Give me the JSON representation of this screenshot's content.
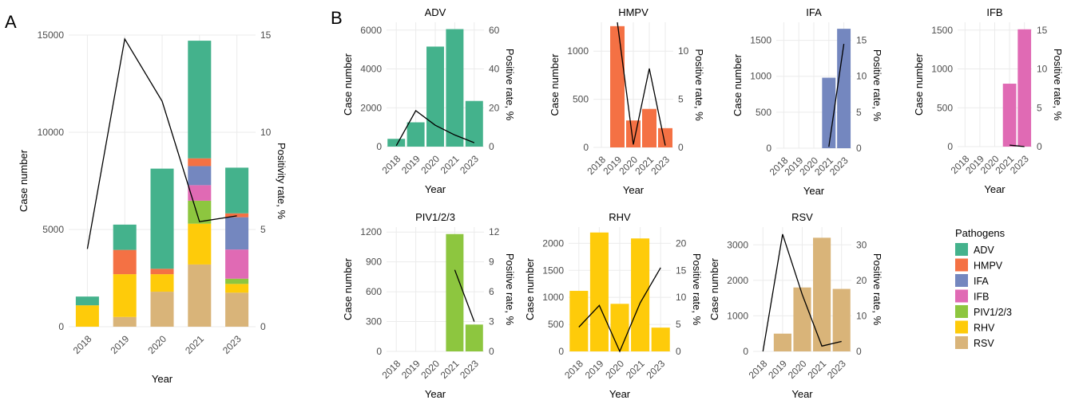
{
  "figure": {
    "panel_labels": [
      "A",
      "B"
    ],
    "legend_title": "Pathogens",
    "legend": [
      {
        "name": "ADV",
        "color": "#44B28C"
      },
      {
        "name": "HMPV",
        "color": "#F47144"
      },
      {
        "name": "IFA",
        "color": "#7487BF"
      },
      {
        "name": "IFB",
        "color": "#E06AB4"
      },
      {
        "name": "PIV1/2/3",
        "color": "#8DC63F"
      },
      {
        "name": "RHV",
        "color": "#FECB0A"
      },
      {
        "name": "RSV",
        "color": "#D9B479"
      }
    ]
  },
  "chart_data": [
    {
      "id": "A",
      "type": "bar",
      "stacked": true,
      "title": "",
      "xlabel": "Year",
      "ylabel": "Case number",
      "y2label": "Positivity rate, %",
      "categories": [
        "2018",
        "2019",
        "2020",
        "2021",
        "2023"
      ],
      "ylim": [
        0,
        15000
      ],
      "y2lim": [
        0,
        15
      ],
      "yticks": [
        0,
        5000,
        10000,
        15000
      ],
      "y2ticks": [
        0,
        5,
        10,
        15
      ],
      "series": [
        {
          "name": "RSV",
          "color": "#D9B479",
          "values": [
            0,
            500,
            1800,
            3200,
            1750
          ]
        },
        {
          "name": "RHV",
          "color": "#FECB0A",
          "values": [
            1100,
            2200,
            900,
            2100,
            450
          ]
        },
        {
          "name": "PIV1/2/3",
          "color": "#8DC63F",
          "values": [
            0,
            0,
            0,
            1180,
            270
          ]
        },
        {
          "name": "IFB",
          "color": "#E06AB4",
          "values": [
            0,
            0,
            0,
            800,
            1500
          ]
        },
        {
          "name": "IFA",
          "color": "#7487BF",
          "values": [
            0,
            0,
            0,
            980,
            1660
          ]
        },
        {
          "name": "HMPV",
          "color": "#F47144",
          "values": [
            0,
            1250,
            280,
            400,
            200
          ]
        },
        {
          "name": "ADV",
          "color": "#44B28C",
          "values": [
            450,
            1300,
            5150,
            6050,
            2350
          ]
        }
      ],
      "line": [
        4.0,
        14.8,
        11.6,
        5.4,
        5.7
      ]
    },
    {
      "id": "ADV",
      "type": "bar",
      "title": "ADV",
      "color": "#44B28C",
      "xlabel": "Year",
      "ylabel": "Case number",
      "y2label": "Positive rate, %",
      "categories": [
        "2018",
        "2019",
        "2020",
        "2021",
        "2023"
      ],
      "values": [
        400,
        1250,
        5150,
        6050,
        2350
      ],
      "line": [
        0.5,
        18.5,
        11.0,
        6.0,
        2.0
      ],
      "ylim": [
        0,
        6400
      ],
      "y2lim": [
        0,
        64
      ],
      "yticks": [
        0,
        2000,
        4000,
        6000
      ],
      "y2ticks": [
        0,
        20,
        40,
        60
      ]
    },
    {
      "id": "HMPV",
      "type": "bar",
      "title": "HMPV",
      "color": "#F47144",
      "xlabel": "Year",
      "ylabel": "Case number",
      "y2label": "Positive rate, %",
      "categories": [
        "2018",
        "2019",
        "2020",
        "2021",
        "2023"
      ],
      "values": [
        0,
        1260,
        280,
        400,
        200
      ],
      "line": [
        null,
        13.0,
        0.3,
        8.2,
        0.2
      ],
      "ylim": [
        0,
        1300
      ],
      "y2lim": [
        0,
        13
      ],
      "yticks": [
        0,
        500,
        1000
      ],
      "y2ticks": [
        0,
        5,
        10
      ]
    },
    {
      "id": "IFA",
      "type": "bar",
      "title": "IFA",
      "color": "#7487BF",
      "xlabel": "Year",
      "ylabel": "Case number",
      "y2label": "Positive rate, %",
      "categories": [
        "2018",
        "2019",
        "2020",
        "2021",
        "2023"
      ],
      "values": [
        0,
        0,
        0,
        980,
        1660
      ],
      "line": [
        null,
        null,
        null,
        0.2,
        14.5
      ],
      "ylim": [
        0,
        1750
      ],
      "y2lim": [
        0,
        17.5
      ],
      "yticks": [
        0,
        500,
        1000,
        1500
      ],
      "y2ticks": [
        0,
        5,
        10,
        15
      ]
    },
    {
      "id": "IFB",
      "type": "bar",
      "title": "IFB",
      "color": "#E06AB4",
      "xlabel": "Year",
      "ylabel": "Case number",
      "y2label": "Positive rate, %",
      "categories": [
        "2018",
        "2019",
        "2020",
        "2021",
        "2023"
      ],
      "values": [
        0,
        0,
        0,
        810,
        1510
      ],
      "line": [
        null,
        null,
        null,
        0.2,
        0.0
      ],
      "ylim": [
        0,
        1600
      ],
      "y2lim": [
        0,
        16
      ],
      "yticks": [
        0,
        500,
        1000,
        1500
      ],
      "y2ticks": [
        0,
        5,
        10,
        15
      ]
    },
    {
      "id": "PIV",
      "type": "bar",
      "title": "PIV1/2/3",
      "color": "#8DC63F",
      "xlabel": "Year",
      "ylabel": "Case number",
      "y2label": "Positive rate, %",
      "categories": [
        "2018",
        "2019",
        "2020",
        "2021",
        "2023"
      ],
      "values": [
        0,
        0,
        0,
        1180,
        270
      ],
      "line": [
        null,
        null,
        null,
        8.2,
        3.0
      ],
      "ylim": [
        0,
        1250
      ],
      "y2lim": [
        0,
        12.5
      ],
      "yticks": [
        0,
        300,
        600,
        900,
        1200
      ],
      "y2ticks": [
        0,
        3,
        6,
        9,
        12
      ]
    },
    {
      "id": "RHV",
      "type": "bar",
      "title": "RHV",
      "color": "#FECB0A",
      "xlabel": "Year",
      "ylabel": "Case number",
      "y2label": "Positive rate, %",
      "categories": [
        "2018",
        "2019",
        "2020",
        "2021",
        "2023"
      ],
      "values": [
        1120,
        2200,
        880,
        2090,
        440
      ],
      "line": [
        4.5,
        8.5,
        0.0,
        9.0,
        15.5
      ],
      "ylim": [
        0,
        2300
      ],
      "y2lim": [
        0,
        23
      ],
      "yticks": [
        0,
        500,
        1000,
        1500,
        2000
      ],
      "y2ticks": [
        0,
        5,
        10,
        15,
        20
      ]
    },
    {
      "id": "RSV",
      "type": "bar",
      "title": "RSV",
      "color": "#D9B479",
      "xlabel": "Year",
      "ylabel": "Case number",
      "y2label": "Positive rate, %",
      "categories": [
        "2018",
        "2019",
        "2020",
        "2021",
        "2023"
      ],
      "values": [
        0,
        500,
        1800,
        3200,
        1760
      ],
      "line": [
        0.0,
        33.0,
        16.0,
        1.5,
        2.8
      ],
      "ylim": [
        0,
        3500
      ],
      "y2lim": [
        0,
        35
      ],
      "yticks": [
        0,
        1000,
        2000,
        3000
      ],
      "y2ticks": [
        0,
        10,
        20,
        30
      ]
    }
  ]
}
